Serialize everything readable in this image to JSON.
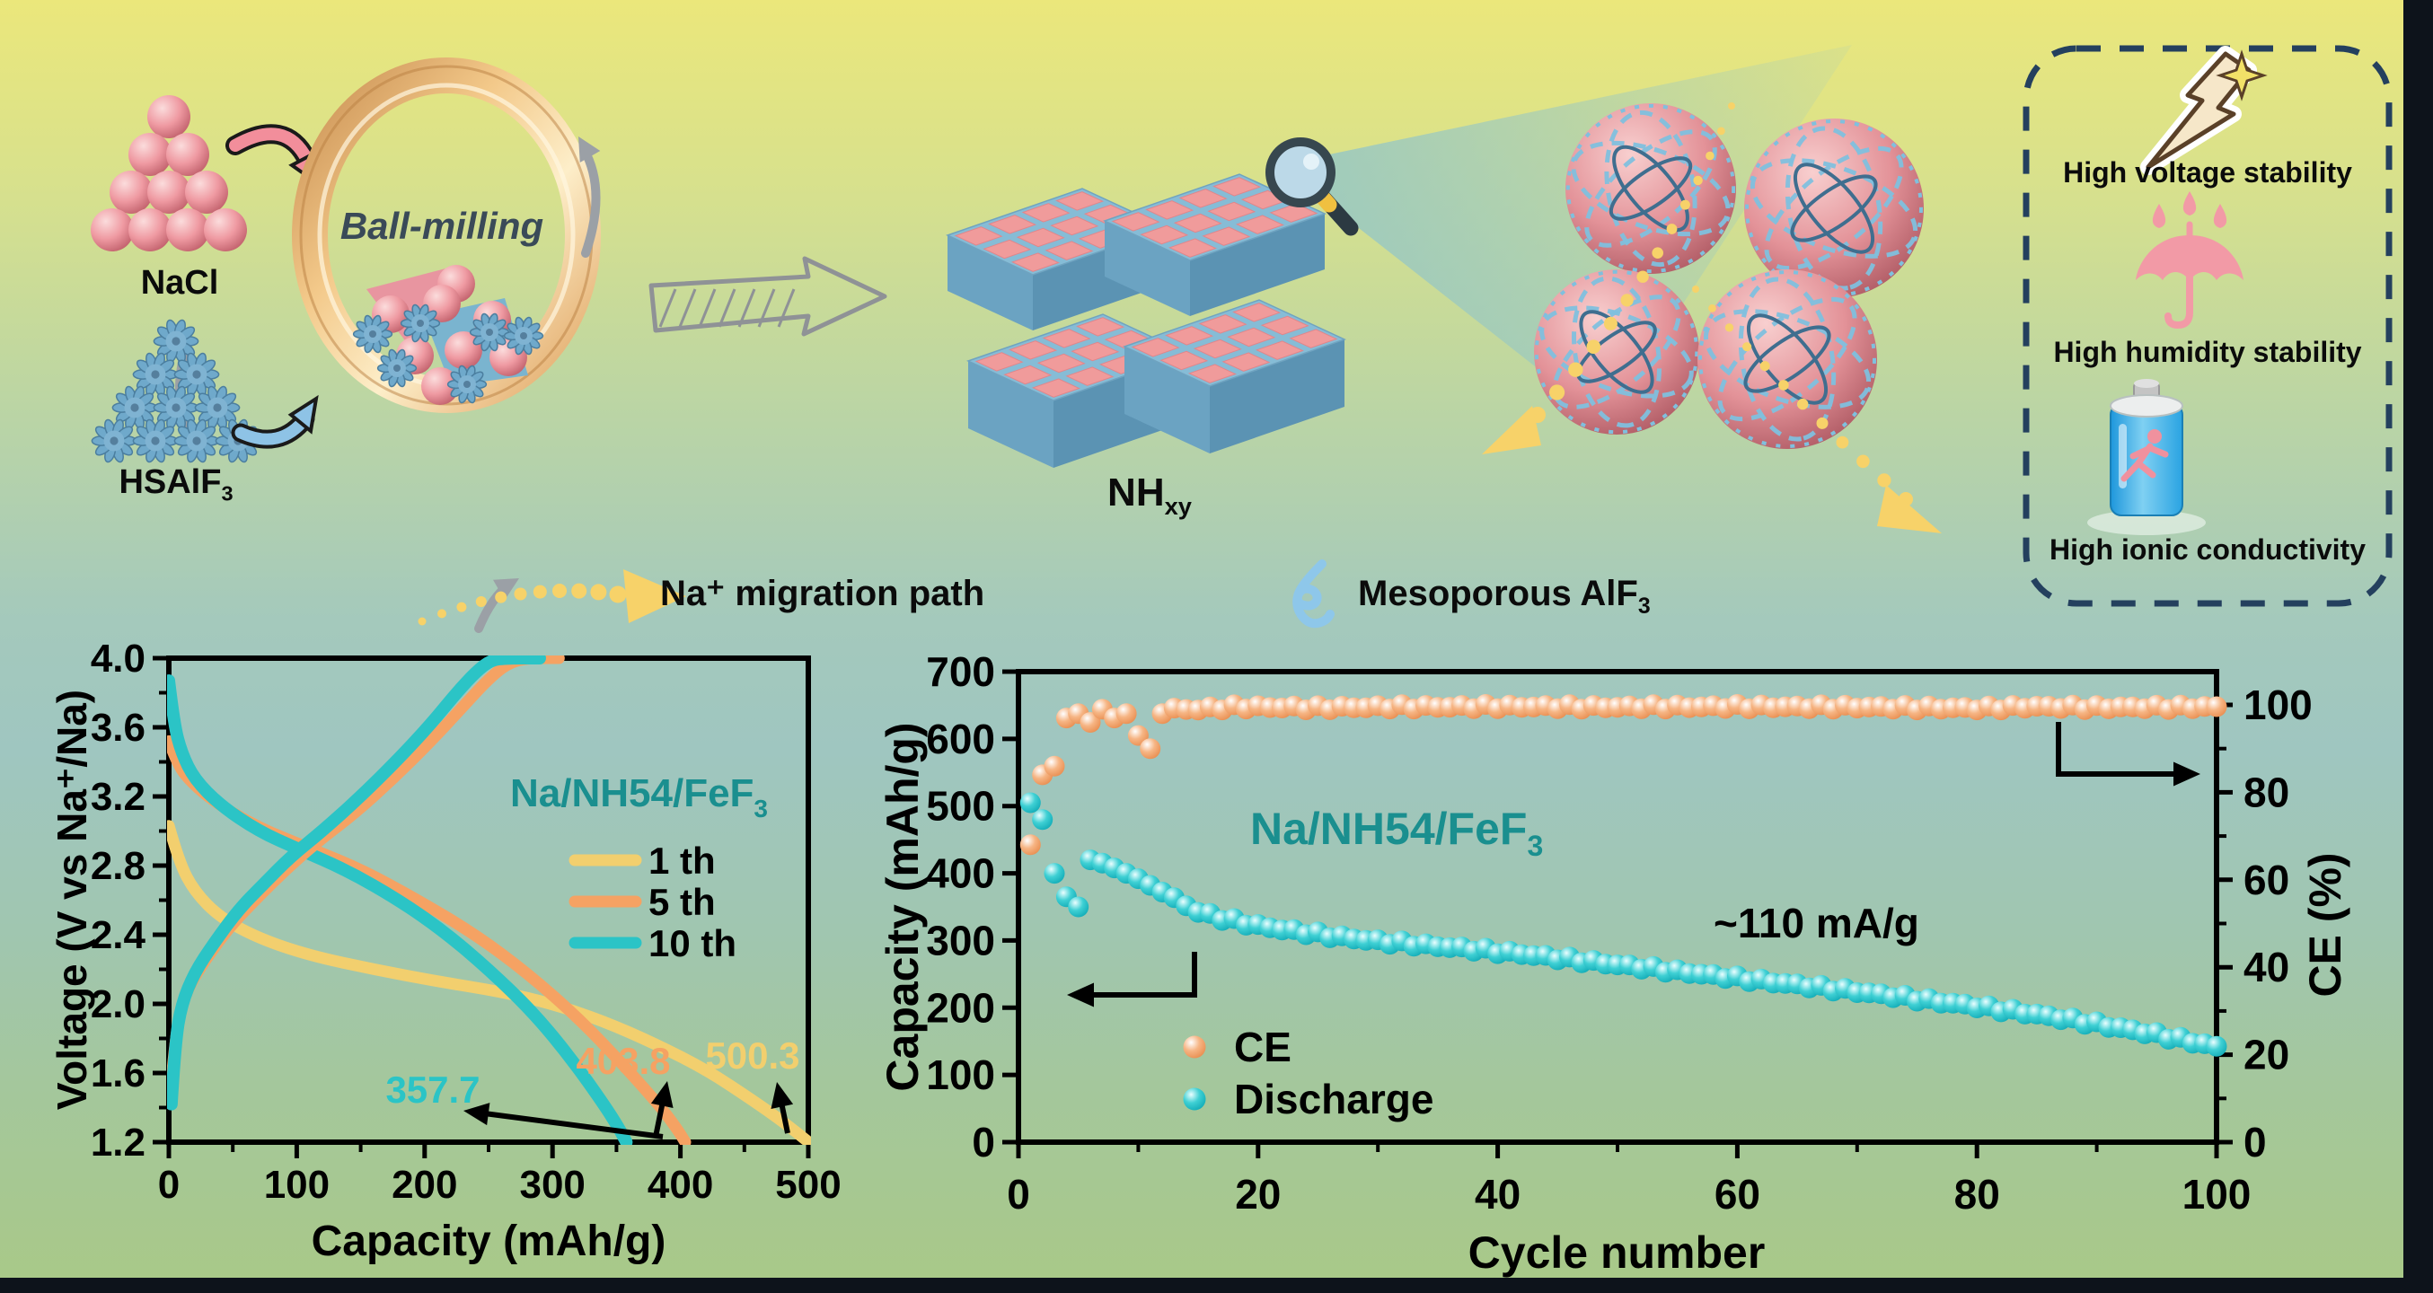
{
  "colors": {
    "teal": "#2bc4c6",
    "orange": "#f5a263",
    "yellow": "#f2cf6e",
    "pink": "#ef96a0",
    "steel_blue": "#6fa9cb",
    "slab_blue": "#86bcd6",
    "navy": "#24405e",
    "gold": "#f3c98a",
    "migration_yellow": "#f7d269",
    "chart_title_teal": "#1a8f8f"
  },
  "scheme": {
    "nacl_label": "NaCl",
    "ball_milling_label": "Ball-milling",
    "hsalf3_base": "HSAlF",
    "hsalf3_sub": "3",
    "nhxy_base": "NH",
    "nhxy_sub": "xy",
    "benefits": [
      {
        "label": "High voltage stability",
        "icon": "lightning-icon"
      },
      {
        "label": "High humidity stability",
        "icon": "umbrella-rain-icon"
      },
      {
        "label": "High ionic conductivity",
        "icon": "battery-icon"
      }
    ],
    "migration_legend_label": "Na⁺ migration path",
    "mesoporous_base": "Mesoporous AlF",
    "mesoporous_sub": "3"
  },
  "chart_data": [
    {
      "id": "voltage-capacity",
      "type": "line",
      "title_base": "Na/NH54/FeF",
      "title_sub": "3",
      "xlabel": "Capacity (mAh/g)",
      "ylabel": "Voltage (V vs Na⁺/Na)",
      "xlim": [
        0,
        500
      ],
      "ylim": [
        1.2,
        4.0
      ],
      "xticks": [
        0,
        100,
        200,
        300,
        400,
        500
      ],
      "yticks": [
        4.0,
        3.6,
        3.2,
        2.8,
        2.4,
        2.0,
        1.6,
        1.2
      ],
      "grid": false,
      "legend_position": "center-right",
      "legend": [
        {
          "label": "1 th",
          "color": "yellow"
        },
        {
          "label": "5 th",
          "color": "orange"
        },
        {
          "label": "10 th",
          "color": "teal"
        }
      ],
      "annotations": [
        {
          "text": "357.7",
          "color": "teal"
        },
        {
          "text": "403.8",
          "color": "orange"
        },
        {
          "text": "500.3",
          "color": "yellow"
        }
      ],
      "series": [
        {
          "name": "discharge-1th",
          "color": "yellow",
          "points": [
            [
              0,
              3.03
            ],
            [
              8,
              2.82
            ],
            [
              20,
              2.65
            ],
            [
              40,
              2.5
            ],
            [
              70,
              2.38
            ],
            [
              110,
              2.28
            ],
            [
              160,
              2.2
            ],
            [
              210,
              2.13
            ],
            [
              260,
              2.07
            ],
            [
              300,
              2.0
            ],
            [
              340,
              1.9
            ],
            [
              380,
              1.77
            ],
            [
              420,
              1.62
            ],
            [
              455,
              1.45
            ],
            [
              480,
              1.32
            ],
            [
              500.3,
              1.2
            ]
          ]
        },
        {
          "name": "discharge-5th",
          "color": "orange",
          "points": [
            [
              0,
              3.52
            ],
            [
              6,
              3.4
            ],
            [
              15,
              3.3
            ],
            [
              35,
              3.17
            ],
            [
              70,
              3.02
            ],
            [
              110,
              2.9
            ],
            [
              150,
              2.78
            ],
            [
              195,
              2.6
            ],
            [
              240,
              2.4
            ],
            [
              280,
              2.18
            ],
            [
              320,
              1.92
            ],
            [
              355,
              1.65
            ],
            [
              385,
              1.4
            ],
            [
              398,
              1.27
            ],
            [
              403.8,
              1.2
            ]
          ]
        },
        {
          "name": "discharge-10th",
          "color": "teal",
          "points": [
            [
              0,
              3.87
            ],
            [
              4,
              3.62
            ],
            [
              10,
              3.45
            ],
            [
              20,
              3.3
            ],
            [
              40,
              3.15
            ],
            [
              70,
              3.0
            ],
            [
              100,
              2.9
            ],
            [
              140,
              2.77
            ],
            [
              180,
              2.6
            ],
            [
              215,
              2.42
            ],
            [
              250,
              2.2
            ],
            [
              285,
              1.95
            ],
            [
              315,
              1.68
            ],
            [
              340,
              1.42
            ],
            [
              352,
              1.28
            ],
            [
              357.7,
              1.2
            ]
          ]
        },
        {
          "name": "charge-5th",
          "color": "orange",
          "points": [
            [
              2,
              1.55
            ],
            [
              6,
              1.88
            ],
            [
              14,
              2.08
            ],
            [
              28,
              2.25
            ],
            [
              48,
              2.45
            ],
            [
              70,
              2.62
            ],
            [
              92,
              2.78
            ],
            [
              115,
              2.93
            ],
            [
              145,
              3.1
            ],
            [
              175,
              3.3
            ],
            [
              205,
              3.52
            ],
            [
              230,
              3.72
            ],
            [
              250,
              3.88
            ],
            [
              265,
              3.97
            ],
            [
              280,
              4.0
            ],
            [
              305,
              4.0
            ]
          ]
        },
        {
          "name": "charge-10th",
          "color": "teal",
          "points": [
            [
              2,
              1.42
            ],
            [
              5,
              1.78
            ],
            [
              10,
              2.0
            ],
            [
              20,
              2.18
            ],
            [
              35,
              2.35
            ],
            [
              55,
              2.55
            ],
            [
              75,
              2.7
            ],
            [
              95,
              2.85
            ],
            [
              120,
              3.0
            ],
            [
              150,
              3.2
            ],
            [
              180,
              3.42
            ],
            [
              205,
              3.62
            ],
            [
              225,
              3.8
            ],
            [
              240,
              3.92
            ],
            [
              252,
              3.99
            ],
            [
              265,
              4.0
            ],
            [
              290,
              4.0
            ]
          ]
        }
      ]
    },
    {
      "id": "cycling",
      "type": "scatter",
      "xlabel": "Cycle number",
      "ylabel_left": "Capacity (mAh/g)",
      "ylabel_right": "CE (%)",
      "xlim": [
        0,
        100
      ],
      "ylim_left": [
        0,
        700
      ],
      "ylim_right": [
        0,
        100
      ],
      "xticks": [
        0,
        20,
        40,
        60,
        80,
        100
      ],
      "yticks_left": [
        700,
        600,
        500,
        400,
        300,
        200,
        100,
        0
      ],
      "yticks_right": [
        100,
        80,
        60,
        40,
        20,
        0
      ],
      "grid": false,
      "annotation_title_base": "Na/NH54/FeF",
      "annotation_title_sub": "3",
      "annotation_rate": "~110 mA/g",
      "legend": [
        {
          "label": "CE",
          "color": "orange"
        },
        {
          "label": "Discharge",
          "color": "teal"
        }
      ],
      "series": [
        {
          "name": "CE",
          "axis": "right",
          "color": "orange",
          "unit": "%",
          "anchors": [
            [
              1,
              68
            ],
            [
              2,
              84
            ],
            [
              3,
              86
            ],
            [
              4,
              97
            ],
            [
              5,
              98
            ],
            [
              6,
              96
            ],
            [
              7,
              99
            ],
            [
              8,
              97
            ],
            [
              9,
              98
            ],
            [
              10,
              93
            ],
            [
              11,
              90
            ],
            [
              12,
              98
            ],
            [
              13,
              99
            ],
            [
              15,
              99
            ],
            [
              18,
              99.5
            ],
            [
              20,
              99.5
            ],
            [
              25,
              99.3
            ],
            [
              30,
              99.5
            ],
            [
              40,
              99.6
            ],
            [
              50,
              99.5
            ],
            [
              60,
              99.6
            ],
            [
              70,
              99.5
            ],
            [
              80,
              99.2
            ],
            [
              85,
              99.6
            ],
            [
              90,
              99.4
            ],
            [
              100,
              99.5
            ]
          ]
        },
        {
          "name": "Discharge",
          "axis": "left",
          "color": "teal",
          "unit": "mAh/g",
          "anchors": [
            [
              1,
              505
            ],
            [
              2,
              480
            ],
            [
              3,
              400
            ],
            [
              4,
              365
            ],
            [
              5,
              350
            ],
            [
              6,
              420
            ],
            [
              7,
              415
            ],
            [
              8,
              408
            ],
            [
              9,
              400
            ],
            [
              10,
              392
            ],
            [
              11,
              382
            ],
            [
              12,
              372
            ],
            [
              13,
              362
            ],
            [
              14,
              352
            ],
            [
              15,
              343
            ],
            [
              17,
              333
            ],
            [
              20,
              322
            ],
            [
              23,
              314
            ],
            [
              26,
              307
            ],
            [
              30,
              299
            ],
            [
              34,
              293
            ],
            [
              38,
              287
            ],
            [
              42,
              280
            ],
            [
              46,
              272
            ],
            [
              50,
              264
            ],
            [
              55,
              254
            ],
            [
              60,
              244
            ],
            [
              65,
              234
            ],
            [
              70,
              224
            ],
            [
              75,
              213
            ],
            [
              80,
              202
            ],
            [
              85,
              190
            ],
            [
              90,
              176
            ],
            [
              95,
              160
            ],
            [
              100,
              142
            ]
          ]
        }
      ]
    }
  ]
}
